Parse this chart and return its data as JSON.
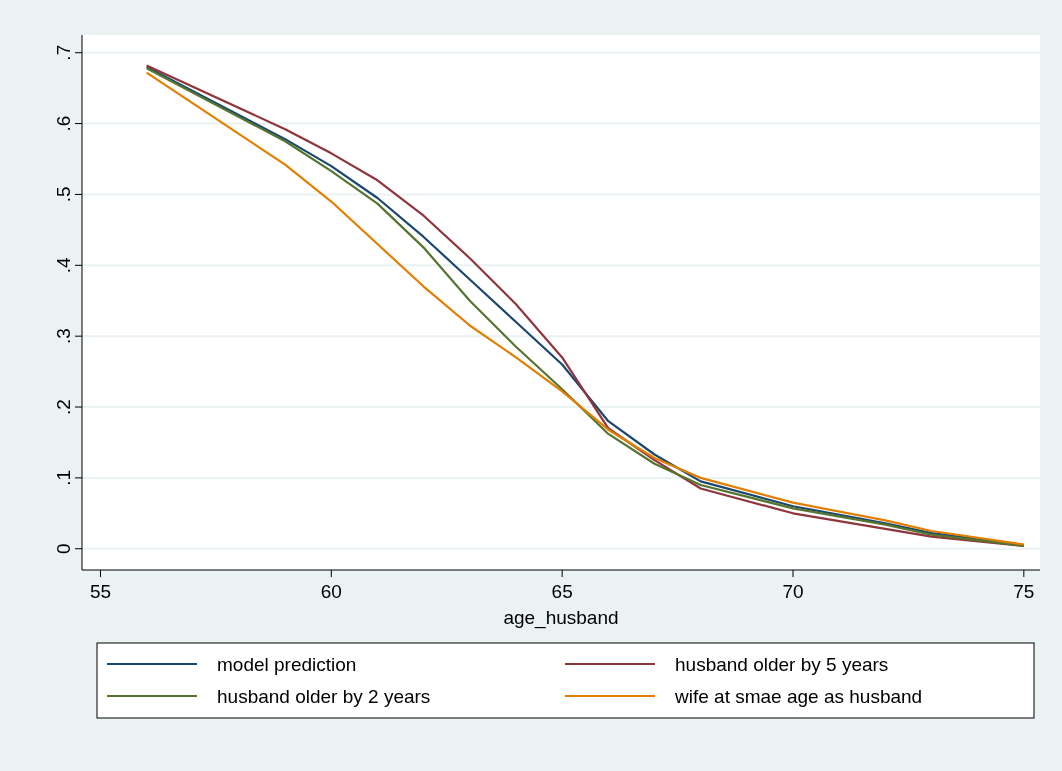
{
  "chart_data": {
    "type": "line",
    "xlabel": "age_husband",
    "x": [
      56,
      59,
      60,
      61,
      62,
      63,
      64,
      65,
      66,
      67,
      68,
      70,
      72,
      73,
      75
    ],
    "series": [
      {
        "name": "model prediction",
        "color": "#1a476f",
        "values": [
          0.68,
          0.578,
          0.54,
          0.495,
          0.44,
          0.38,
          0.32,
          0.26,
          0.18,
          0.133,
          0.095,
          0.06,
          0.036,
          0.022,
          0.005
        ]
      },
      {
        "name": "husband older by 5 years",
        "color": "#90353b",
        "values": [
          0.682,
          0.592,
          0.558,
          0.52,
          0.47,
          0.41,
          0.345,
          0.27,
          0.17,
          0.125,
          0.085,
          0.05,
          0.028,
          0.017,
          0.004
        ]
      },
      {
        "name": "husband older by 2 years",
        "color": "#55752f",
        "values": [
          0.678,
          0.575,
          0.533,
          0.487,
          0.425,
          0.35,
          0.285,
          0.225,
          0.162,
          0.12,
          0.09,
          0.057,
          0.034,
          0.02,
          0.004
        ]
      },
      {
        "name": "wife at smae age as husband",
        "color": "#e37e00",
        "values": [
          0.672,
          0.542,
          0.49,
          0.43,
          0.37,
          0.315,
          0.27,
          0.222,
          0.168,
          0.128,
          0.1,
          0.065,
          0.04,
          0.025,
          0.006
        ]
      }
    ],
    "xlim": [
      54.6,
      75.35
    ],
    "xticks": [
      55,
      60,
      65,
      70,
      75
    ],
    "ylim": [
      -0.03,
      0.725
    ],
    "yticks": [
      {
        "value": 0,
        "label": "0"
      },
      {
        "value": 0.1,
        "label": ".1"
      },
      {
        "value": 0.2,
        "label": ".2"
      },
      {
        "value": 0.3,
        "label": ".3"
      },
      {
        "value": 0.4,
        "label": ".4"
      },
      {
        "value": 0.5,
        "label": ".5"
      },
      {
        "value": 0.6,
        "label": ".6"
      },
      {
        "value": 0.7,
        "label": ".7"
      }
    ],
    "grid": "y",
    "legend": "bottom",
    "line_style": "solid",
    "marker": "none"
  }
}
